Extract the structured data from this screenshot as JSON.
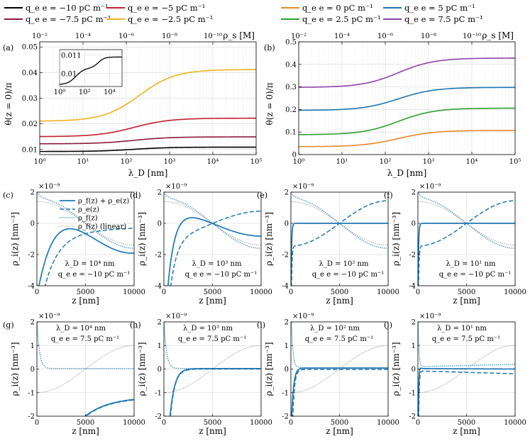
{
  "figure": {
    "legend_top": [
      {
        "label": "q_e e = −10 pC m⁻¹",
        "color": "#000000"
      },
      {
        "label": "q_e e = −5 pC m⁻¹",
        "color": "#c0212f"
      },
      {
        "label": "q_e e = −7.5 pC m⁻¹",
        "color": "#8b1a3a"
      },
      {
        "label": "q_e e = −2.5 pC m⁻¹",
        "color": "#f0b323"
      },
      {
        "label": "q_e e = 0 pC m⁻¹",
        "color": "#e8892a"
      },
      {
        "label": "q_e e = 5 pC m⁻¹",
        "color": "#1f77b4"
      },
      {
        "label": "q_e e = 2.5 pC m⁻¹",
        "color": "#2e9f2e"
      },
      {
        "label": "q_e e = 7.5 pC m⁻¹",
        "color": "#8e44ad"
      }
    ],
    "rho_legend": [
      "ρ_f(z) + ρ_e(z)",
      "ρ_e(z)",
      "ρ_f(z)",
      "ρ_f(z) (linear)"
    ],
    "colors": {
      "blue": "#1f77b4",
      "gray": "#999999"
    }
  },
  "chart_data": [
    {
      "id": "a",
      "panel_label": "(a)",
      "type": "line",
      "xlabel": "λ_D [nm]",
      "ylabel": "θ(z = 0)/π",
      "top_axis_label": "ρ_s [M]",
      "xscale": "log",
      "xlim": [
        1,
        100000
      ],
      "xticks": [
        1,
        10,
        100,
        1000,
        10000,
        100000
      ],
      "xtick_labels": [
        "10⁰",
        "10¹",
        "10²",
        "10³",
        "10⁴",
        "10⁵"
      ],
      "top_tick_labels": [
        "10⁻²",
        "10⁻⁴",
        "10⁻⁶",
        "10⁻⁸",
        "10⁻¹⁰"
      ],
      "ylim": [
        0.008,
        0.052
      ],
      "yticks": [
        0.01,
        0.02,
        0.03,
        0.04,
        0.05
      ],
      "ytick_labels": [
        "0.01",
        "0.02",
        "0.03",
        "0.04",
        "0.05"
      ],
      "series": [
        {
          "name": "q_e e = −10 pC m⁻¹",
          "color": "#000000",
          "low": 0.0092,
          "high": 0.0109,
          "x0": 150
        },
        {
          "name": "q_e e = −7.5 pC m⁻¹",
          "color": "#8b1a3a",
          "low": 0.0122,
          "high": 0.0149,
          "x0": 150
        },
        {
          "name": "q_e e = −5 pC m⁻¹",
          "color": "#c0212f",
          "low": 0.015,
          "high": 0.0222,
          "x0": 150
        },
        {
          "name": "q_e e = −2.5 pC m⁻¹",
          "color": "#f0b323",
          "low": 0.021,
          "high": 0.0412,
          "x0": 200
        }
      ],
      "inset": {
        "xticks": [
          1,
          100,
          10000
        ],
        "xtick_labels": [
          "10⁰",
          "10²",
          "10⁴"
        ],
        "yticks": [
          0.01,
          0.011
        ],
        "ytick_labels": [
          "0.01",
          "0.011"
        ],
        "ylim": [
          0.0093,
          0.0113
        ]
      }
    },
    {
      "id": "b",
      "panel_label": "(b)",
      "type": "line",
      "xlabel": "λ_D [nm]",
      "ylabel": "θ(z = 0)/π",
      "top_axis_label": "ρ_s [M]",
      "xscale": "log",
      "xlim": [
        1,
        100000
      ],
      "xticks": [
        1,
        10,
        100,
        1000,
        10000,
        100000
      ],
      "xtick_labels": [
        "10⁰",
        "10¹",
        "10²",
        "10³",
        "10⁴",
        "10⁵"
      ],
      "top_tick_labels": [
        "10⁻²",
        "10⁻⁴",
        "10⁻⁶",
        "10⁻⁸",
        "10⁻¹⁰"
      ],
      "ylim": [
        0,
        0.5
      ],
      "yticks": [
        0,
        0.1,
        0.2,
        0.3,
        0.4,
        0.5
      ],
      "ytick_labels": [
        "0",
        "0.1",
        "0.2",
        "0.3",
        "0.4",
        "0.5"
      ],
      "series": [
        {
          "name": "q_e e = 0 pC m⁻¹",
          "color": "#e8892a",
          "low": 0.035,
          "high": 0.107,
          "x0": 200
        },
        {
          "name": "q_e e = 2.5 pC m⁻¹",
          "color": "#2e9f2e",
          "low": 0.088,
          "high": 0.206,
          "x0": 200
        },
        {
          "name": "q_e e = 5 pC m⁻¹",
          "color": "#1f77b4",
          "low": 0.196,
          "high": 0.298,
          "x0": 200
        },
        {
          "name": "q_e e = 7.5 pC m⁻¹",
          "color": "#8e44ad",
          "low": 0.298,
          "high": 0.428,
          "x0": 200
        }
      ]
    },
    {
      "id": "c",
      "panel_label": "(c)",
      "type": "line",
      "xlim": [
        0,
        10000
      ],
      "ylim": [
        -4,
        2
      ],
      "yticks": [
        -4,
        -2,
        0,
        2
      ],
      "ytick_labels": [
        "-4",
        "-2",
        "0",
        "2"
      ],
      "xticks": [
        0,
        5000,
        10000
      ],
      "xtick_labels": [
        "0",
        "5000",
        "10000"
      ],
      "exponent_label": "×10⁻⁹",
      "xlabel": "z [nm]",
      "ylabel": "ρ_i(z) [nm⁻³]",
      "annotation_lines": [
        "λ_D = 10⁴ nm",
        "q_e e = −10 pC m⁻¹"
      ],
      "lambda": 10000,
      "qe": -10
    },
    {
      "id": "d",
      "panel_label": "(d)",
      "type": "line",
      "xlim": [
        0,
        10000
      ],
      "ylim": [
        -4,
        2
      ],
      "yticks": [
        -4,
        -2,
        0,
        2
      ],
      "ytick_labels": [
        "-4",
        "-2",
        "0",
        "2"
      ],
      "xticks": [
        0,
        5000,
        10000
      ],
      "xtick_labels": [
        "0",
        "5000",
        "10000"
      ],
      "exponent_label": "×10⁻⁹",
      "xlabel": "z [nm]",
      "ylabel": "ρ_i(z) [nm⁻³]",
      "annotation_lines": [
        "λ_D = 10³ nm",
        "q_e e = −10 pC m⁻¹"
      ],
      "lambda": 1000,
      "qe": -10
    },
    {
      "id": "e",
      "panel_label": "(e)",
      "type": "line",
      "xlim": [
        0,
        10000
      ],
      "ylim": [
        -4,
        2
      ],
      "yticks": [
        -4,
        -2,
        0,
        2
      ],
      "ytick_labels": [
        "-4",
        "-2",
        "0",
        "2"
      ],
      "xticks": [
        0,
        5000,
        10000
      ],
      "xtick_labels": [
        "0",
        "5000",
        "10000"
      ],
      "exponent_label": "×10⁻⁹",
      "xlabel": "z [nm]",
      "ylabel": "ρ_i(z) [nm⁻³]",
      "annotation_lines": [
        "λ_D = 10² nm",
        "q_e e = −10 pC m⁻¹"
      ],
      "lambda": 100,
      "qe": -10
    },
    {
      "id": "f",
      "panel_label": "(f)",
      "type": "line",
      "xlim": [
        0,
        10000
      ],
      "ylim": [
        -4,
        2
      ],
      "yticks": [
        -4,
        -2,
        0,
        2
      ],
      "ytick_labels": [
        "-4",
        "-2",
        "0",
        "2"
      ],
      "xticks": [
        0,
        5000,
        10000
      ],
      "xtick_labels": [
        "0",
        "5000",
        "10000"
      ],
      "exponent_label": "×10⁻⁹",
      "xlabel": "z [nm]",
      "ylabel": "ρ_i(z) [nm⁻³]",
      "annotation_lines": [
        "λ_D = 10¹ nm",
        "q_e e = −10 pC m⁻¹"
      ],
      "lambda": 10,
      "qe": -10
    },
    {
      "id": "g",
      "panel_label": "(g)",
      "type": "line",
      "xlim": [
        0,
        10000
      ],
      "ylim": [
        -2,
        2
      ],
      "yticks": [
        -2,
        -1,
        0,
        1,
        2
      ],
      "ytick_labels": [
        "-2",
        "-1",
        "0",
        "1",
        "2"
      ],
      "xticks": [
        0,
        5000,
        10000
      ],
      "xtick_labels": [
        "0",
        "5000",
        "10000"
      ],
      "exponent_label": "×10⁻⁹",
      "xlabel": "z [nm]",
      "ylabel": "ρ_i(z) [nm⁻³]",
      "annotation_lines": [
        "λ_D = 10⁴ nm",
        "q_e e = 7.5 pC m⁻¹"
      ],
      "lambda": 10000,
      "qe": 7.5
    },
    {
      "id": "h",
      "panel_label": "(h)",
      "type": "line",
      "xlim": [
        0,
        10000
      ],
      "ylim": [
        -2,
        2
      ],
      "yticks": [
        -2,
        -1,
        0,
        1,
        2
      ],
      "ytick_labels": [
        "-2",
        "-1",
        "0",
        "1",
        "2"
      ],
      "xticks": [
        0,
        5000,
        10000
      ],
      "xtick_labels": [
        "0",
        "5000",
        "10000"
      ],
      "exponent_label": "×10⁻⁹",
      "xlabel": "z [nm]",
      "ylabel": "ρ_i(z) [nm⁻³]",
      "annotation_lines": [
        "λ_D = 10³ nm",
        "q_e e = 7.5 pC m⁻¹"
      ],
      "lambda": 1000,
      "qe": 7.5
    },
    {
      "id": "i",
      "panel_label": "(i)",
      "type": "line",
      "xlim": [
        0,
        10000
      ],
      "ylim": [
        -2,
        2
      ],
      "yticks": [
        -2,
        -1,
        0,
        1,
        2
      ],
      "ytick_labels": [
        "-2",
        "-1",
        "0",
        "1",
        "2"
      ],
      "xticks": [
        0,
        5000,
        10000
      ],
      "xtick_labels": [
        "0",
        "5000",
        "10000"
      ],
      "exponent_label": "×10⁻⁹",
      "xlabel": "z [nm]",
      "ylabel": "ρ_i(z) [nm⁻³]",
      "annotation_lines": [
        "λ_D = 10² nm",
        "q_e e = 7.5 pC m⁻¹"
      ],
      "lambda": 100,
      "qe": 7.5
    },
    {
      "id": "j",
      "panel_label": "(j)",
      "type": "line",
      "xlim": [
        0,
        10000
      ],
      "ylim": [
        -2,
        2
      ],
      "yticks": [
        -2,
        -1,
        0,
        1,
        2
      ],
      "ytick_labels": [
        "-2",
        "-1",
        "0",
        "1",
        "2"
      ],
      "xticks": [
        0,
        5000,
        10000
      ],
      "xtick_labels": [
        "0",
        "5000",
        "10000"
      ],
      "exponent_label": "×10⁻⁹",
      "xlabel": "z [nm]",
      "ylabel": "ρ_i(z) [nm⁻³]",
      "annotation_lines": [
        "λ_D = 10¹ nm",
        "q_e e = 7.5 pC m⁻¹"
      ],
      "lambda": 10,
      "qe": 7.5
    }
  ]
}
